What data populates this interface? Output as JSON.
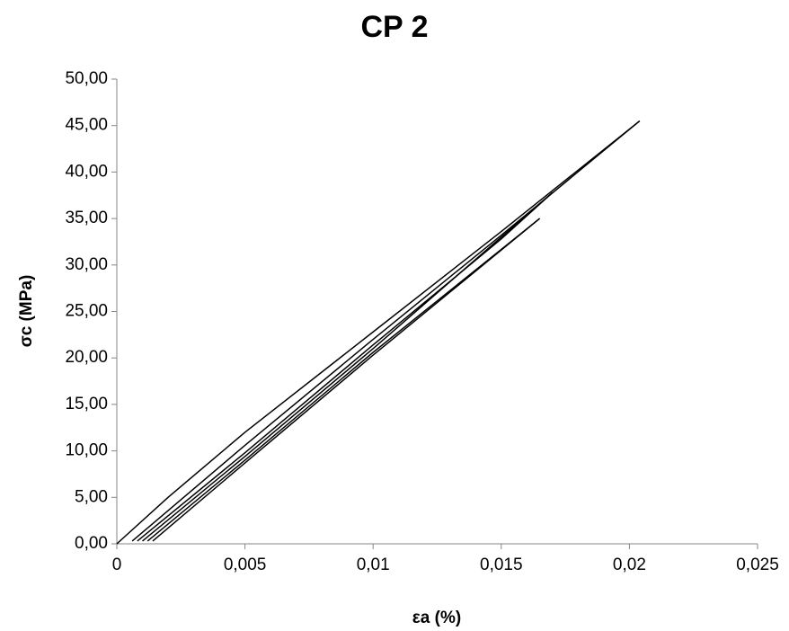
{
  "chart_data": {
    "type": "line",
    "title": "CP 2",
    "xlabel": "εa (%)",
    "ylabel": "σc (MPa)",
    "xlim": [
      0,
      0.025
    ],
    "ylim": [
      0,
      50
    ],
    "xticks": [
      0,
      {
        "value": 0.005,
        "label": "0,005"
      },
      {
        "value": 0.01,
        "label": "0,01"
      },
      {
        "value": 0.015,
        "label": "0,015"
      },
      {
        "value": 0.02,
        "label": "0,02"
      },
      {
        "value": 0.025,
        "label": "0,025"
      }
    ],
    "yticks": [
      {
        "value": 0,
        "label": "0,00"
      },
      {
        "value": 5,
        "label": "5,00"
      },
      {
        "value": 10,
        "label": "10,00"
      },
      {
        "value": 15,
        "label": "15,00"
      },
      {
        "value": 20,
        "label": "20,00"
      },
      {
        "value": 25,
        "label": "25,00"
      },
      {
        "value": 30,
        "label": "30,00"
      },
      {
        "value": 35,
        "label": "35,00"
      },
      {
        "value": 40,
        "label": "40,00"
      },
      {
        "value": 45,
        "label": "45,00"
      },
      {
        "value": 50,
        "label": "50,00"
      }
    ],
    "grid": false,
    "series": [
      {
        "color": "#000000",
        "x": [
          0,
          0.002,
          0.005,
          0.01,
          0.015,
          0.0204
        ],
        "values": [
          0,
          5,
          12,
          22.8,
          33.6,
          45.5
        ]
      },
      {
        "color": "#000000",
        "x": [
          0.0204,
          0.015,
          0.01,
          0.005,
          0.0015,
          0.0006
        ],
        "values": [
          45.5,
          33.2,
          22,
          10.6,
          2.4,
          0.3
        ]
      },
      {
        "color": "#000000",
        "x": [
          0.0008,
          0.005,
          0.01,
          0.015,
          0.017
        ],
        "values": [
          0.3,
          9.8,
          21.4,
          32.8,
          37.8
        ]
      },
      {
        "color": "#000000",
        "x": [
          0.017,
          0.01,
          0.005,
          0.001
        ],
        "values": [
          37.8,
          21,
          9.4,
          0.3
        ]
      },
      {
        "color": "#000000",
        "x": [
          0.0012,
          0.005,
          0.01,
          0.0165
        ],
        "values": [
          0.3,
          9,
          20.6,
          35
        ]
      },
      {
        "color": "#000000",
        "x": [
          0.0165,
          0.01,
          0.005,
          0.0014
        ],
        "values": [
          35,
          20.3,
          8.7,
          0.3
        ]
      }
    ]
  }
}
